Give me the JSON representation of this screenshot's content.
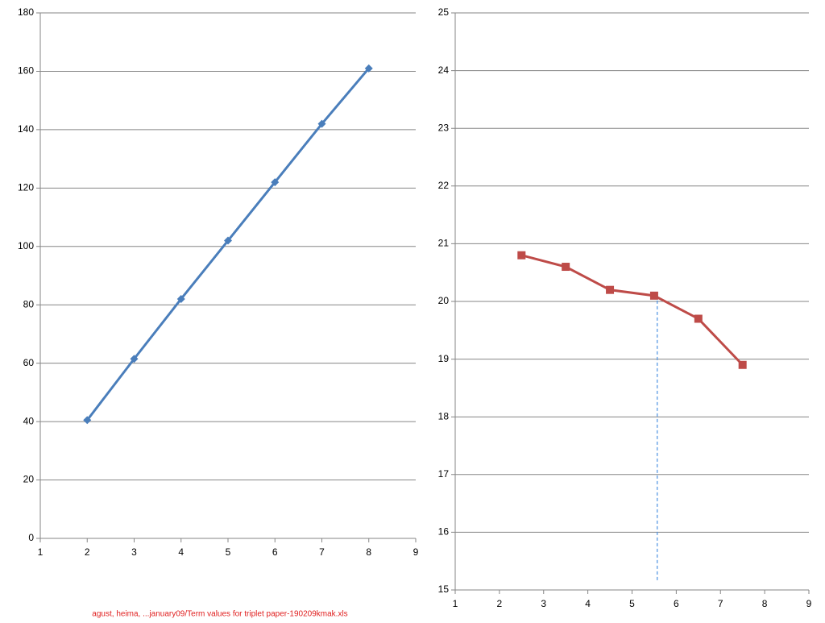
{
  "chart_data": [
    {
      "type": "line",
      "x": [
        2,
        3,
        4,
        5,
        6,
        7,
        8
      ],
      "series": [
        {
          "color": "#4a7ebb",
          "marker": "diamond",
          "values": [
            40.5,
            61.5,
            82,
            102,
            122,
            142,
            161
          ]
        }
      ],
      "xlim": [
        1,
        9
      ],
      "xticks": [
        1,
        2,
        3,
        4,
        5,
        6,
        7,
        8,
        9
      ],
      "ylim": [
        0,
        180
      ],
      "yticks": [
        0,
        20,
        40,
        60,
        80,
        100,
        120,
        140,
        160,
        180
      ],
      "grid": true
    },
    {
      "type": "line",
      "x": [
        2.5,
        3.5,
        4.5,
        5.5,
        6.5,
        7.5
      ],
      "series": [
        {
          "color": "#be4b48",
          "marker": "square",
          "values": [
            20.8,
            20.6,
            20.2,
            20.1,
            19.7,
            18.9
          ]
        }
      ],
      "xlim": [
        1,
        9
      ],
      "xticks": [
        1,
        2,
        3,
        4,
        5,
        6,
        7,
        8,
        9
      ],
      "ylim": [
        15,
        25
      ],
      "yticks": [
        15,
        16,
        17,
        18,
        19,
        20,
        21,
        22,
        23,
        24,
        25
      ],
      "grid": true,
      "vline": {
        "x": 5.57,
        "y_from": 15.17,
        "y_to": 20.1,
        "color": "#4a90e2"
      }
    }
  ],
  "footer": "agust, heima, ...january09/Term values for triplet paper-190209kmak.xls"
}
